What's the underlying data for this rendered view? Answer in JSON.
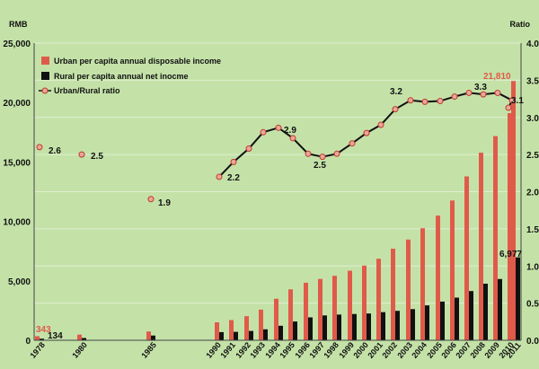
{
  "chart_data": {
    "type": "bar",
    "left_axis_label": "RMB",
    "right_axis_label": "Ratio",
    "left_ticks": [
      "0",
      "5,000",
      "10,000",
      "15,000",
      "20,000",
      "25,000"
    ],
    "right_ticks": [
      "0.0",
      "0.5",
      "1.0",
      "1.5",
      "2.0",
      "2.5",
      "3.0",
      "3.5",
      "4.0"
    ],
    "ylim_left": [
      0,
      25000
    ],
    "ylim_right": [
      0,
      4.0
    ],
    "legend": {
      "urban": "Urban per capita annual disposable income",
      "rural": "Rural per capita annual net inocme",
      "ratio": "Urban/Rural ratio"
    },
    "categories": [
      "1978",
      "1980",
      "1985",
      "1990",
      "1991",
      "1992",
      "1993",
      "1994",
      "1995",
      "1996",
      "1997",
      "1998",
      "1999",
      "2000",
      "2001",
      "2002",
      "2003",
      "2004",
      "2005",
      "2006",
      "2007",
      "2008",
      "2009",
      "2010",
      "2011"
    ],
    "series": [
      {
        "name": "Urban per capita annual disposable income",
        "color": "#e05a4a",
        "values": [
          343,
          478,
          739,
          1510,
          1701,
          2027,
          2577,
          3496,
          4283,
          4839,
          5160,
          5425,
          5854,
          6280,
          6860,
          7703,
          8472,
          9422,
          10493,
          11759,
          13786,
          15781,
          17175,
          19109,
          21810
        ]
      },
      {
        "name": "Rural per capita annual net inocme",
        "color": "#111111",
        "values": [
          134,
          191,
          398,
          686,
          709,
          784,
          922,
          1221,
          1578,
          1926,
          2090,
          2162,
          2210,
          2253,
          2366,
          2476,
          2622,
          2936,
          3255,
          3587,
          4140,
          4761,
          5153,
          5919,
          6977
        ]
      },
      {
        "name": "Urban/Rural ratio",
        "color": "#111111",
        "values": [
          2.6,
          2.5,
          1.9,
          2.2,
          2.4,
          2.58,
          2.8,
          2.86,
          2.72,
          2.51,
          2.47,
          2.51,
          2.65,
          2.79,
          2.9,
          3.11,
          3.23,
          3.21,
          3.22,
          3.28,
          3.33,
          3.31,
          3.33,
          3.23,
          3.13
        ]
      }
    ],
    "annotations": [
      {
        "text": "343",
        "color": "#e05a4a"
      },
      {
        "text": "134",
        "color": "#111111"
      },
      {
        "text": "2.6",
        "color": "#111111"
      },
      {
        "text": "2.5",
        "color": "#111111"
      },
      {
        "text": "1.9",
        "color": "#111111"
      },
      {
        "text": "2.2",
        "color": "#111111"
      },
      {
        "text": "2.9",
        "color": "#111111"
      },
      {
        "text": "2.5",
        "color": "#111111"
      },
      {
        "text": "3.2",
        "color": "#111111"
      },
      {
        "text": "3.3",
        "color": "#111111"
      },
      {
        "text": "21,810",
        "color": "#e05a4a"
      },
      {
        "text": "3.1",
        "color": "#111111"
      },
      {
        "text": "6,977",
        "color": "#111111"
      }
    ]
  }
}
